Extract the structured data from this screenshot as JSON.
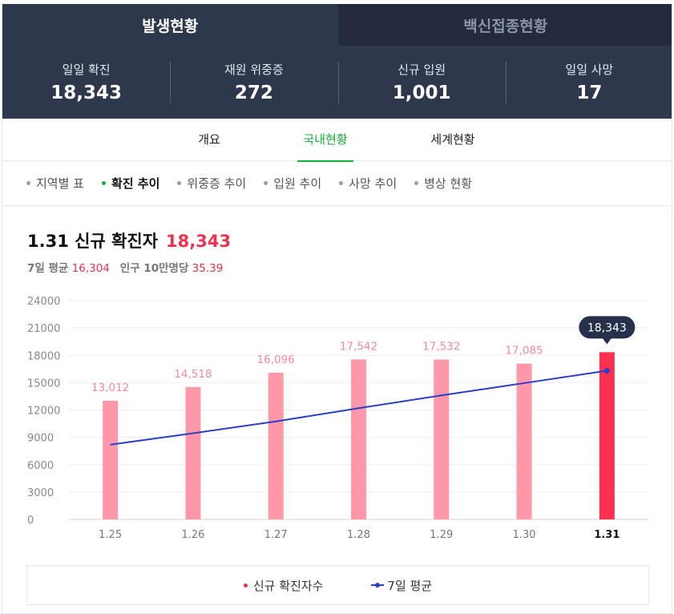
{
  "tabs": [
    {
      "label": "발생현황",
      "active": true
    },
    {
      "label": "백신접종현황",
      "active": false
    }
  ],
  "stats": [
    {
      "label": "일일 확진",
      "value": "18,343"
    },
    {
      "label": "재원 위중증",
      "value": "272"
    },
    {
      "label": "신규 입원",
      "value": "1,001"
    },
    {
      "label": "일일 사망",
      "value": "17"
    }
  ],
  "subnav": [
    {
      "label": "개요",
      "active": false
    },
    {
      "label": "국내현황",
      "active": true
    },
    {
      "label": "세계현황",
      "active": false
    }
  ],
  "filters": [
    {
      "label": "지역별 표",
      "active": false
    },
    {
      "label": "확진 추이",
      "active": true
    },
    {
      "label": "위중증 추이",
      "active": false
    },
    {
      "label": "입원 추이",
      "active": false
    },
    {
      "label": "사망 추이",
      "active": false
    },
    {
      "label": "병상 현황",
      "active": false
    }
  ],
  "headline": {
    "title": "1.31 신규 확진자",
    "value": "18,343",
    "avg_label": "7일 평균",
    "avg_value": "16,304",
    "pop_label": "인구 10만명당",
    "pop_value": "35.39"
  },
  "colors": {
    "bar": "#ff98a8",
    "bar_highlight": "#fc3050",
    "bar_label": "#f48a9b",
    "avg_line": "#2b3ec9",
    "tooltip_bg": "#26304a"
  },
  "legend": {
    "new_cases": "신규 확진자수",
    "avg": "7일 평균"
  },
  "chart_data": {
    "type": "bar",
    "title": "1.31 신규 확진자",
    "categories": [
      "1.25",
      "1.26",
      "1.27",
      "1.28",
      "1.29",
      "1.30",
      "1.31"
    ],
    "series": [
      {
        "name": "신규 확진자수",
        "values": [
          13012,
          14518,
          16096,
          17542,
          17532,
          17085,
          18343
        ],
        "labels": [
          "13,012",
          "14,518",
          "16,096",
          "17,542",
          "17,532",
          "17,085",
          "18,343"
        ]
      },
      {
        "name": "7일 평균",
        "type": "line",
        "values": [
          8200,
          9450,
          10750,
          12200,
          13600,
          14950,
          16304
        ]
      }
    ],
    "highlight_index": 6,
    "ylim": [
      0,
      24000
    ],
    "yticks": [
      "24000",
      "21000",
      "18000",
      "15000",
      "12000",
      "9000",
      "6000",
      "3000",
      "0"
    ],
    "grid": true
  }
}
